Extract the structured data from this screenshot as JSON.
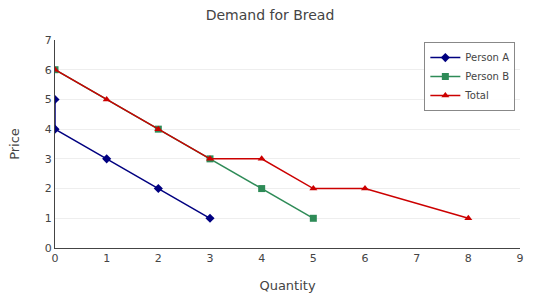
{
  "chart_data": {
    "type": "line",
    "title": "Demand for Bread",
    "xlabel": "Quantity",
    "ylabel": "Price",
    "series": [
      {
        "name": "Person A",
        "color": "#000080",
        "marker": "diamond",
        "x": [
          0,
          0,
          1,
          2,
          3
        ],
        "values": [
          5,
          4,
          3,
          2,
          1
        ]
      },
      {
        "name": "Person B",
        "color": "#2E8B57",
        "marker": "square",
        "x": [
          0,
          2,
          3,
          4,
          5
        ],
        "values": [
          6,
          4,
          3,
          2,
          1
        ]
      },
      {
        "name": "Total",
        "color": "#CC0000",
        "marker": "triangle-up",
        "x": [
          0,
          1,
          2,
          3,
          4,
          5,
          6,
          8
        ],
        "values": [
          6,
          5,
          4,
          3,
          3,
          2,
          2,
          1
        ]
      }
    ],
    "xlim": [
      0,
      9
    ],
    "ylim": [
      0,
      7
    ],
    "xticks": [
      0,
      1,
      2,
      3,
      4,
      5,
      6,
      7,
      8,
      9
    ],
    "yticks": [
      0,
      1,
      2,
      3,
      4,
      5,
      6,
      7
    ],
    "grid": "y",
    "legend": "upper right"
  }
}
